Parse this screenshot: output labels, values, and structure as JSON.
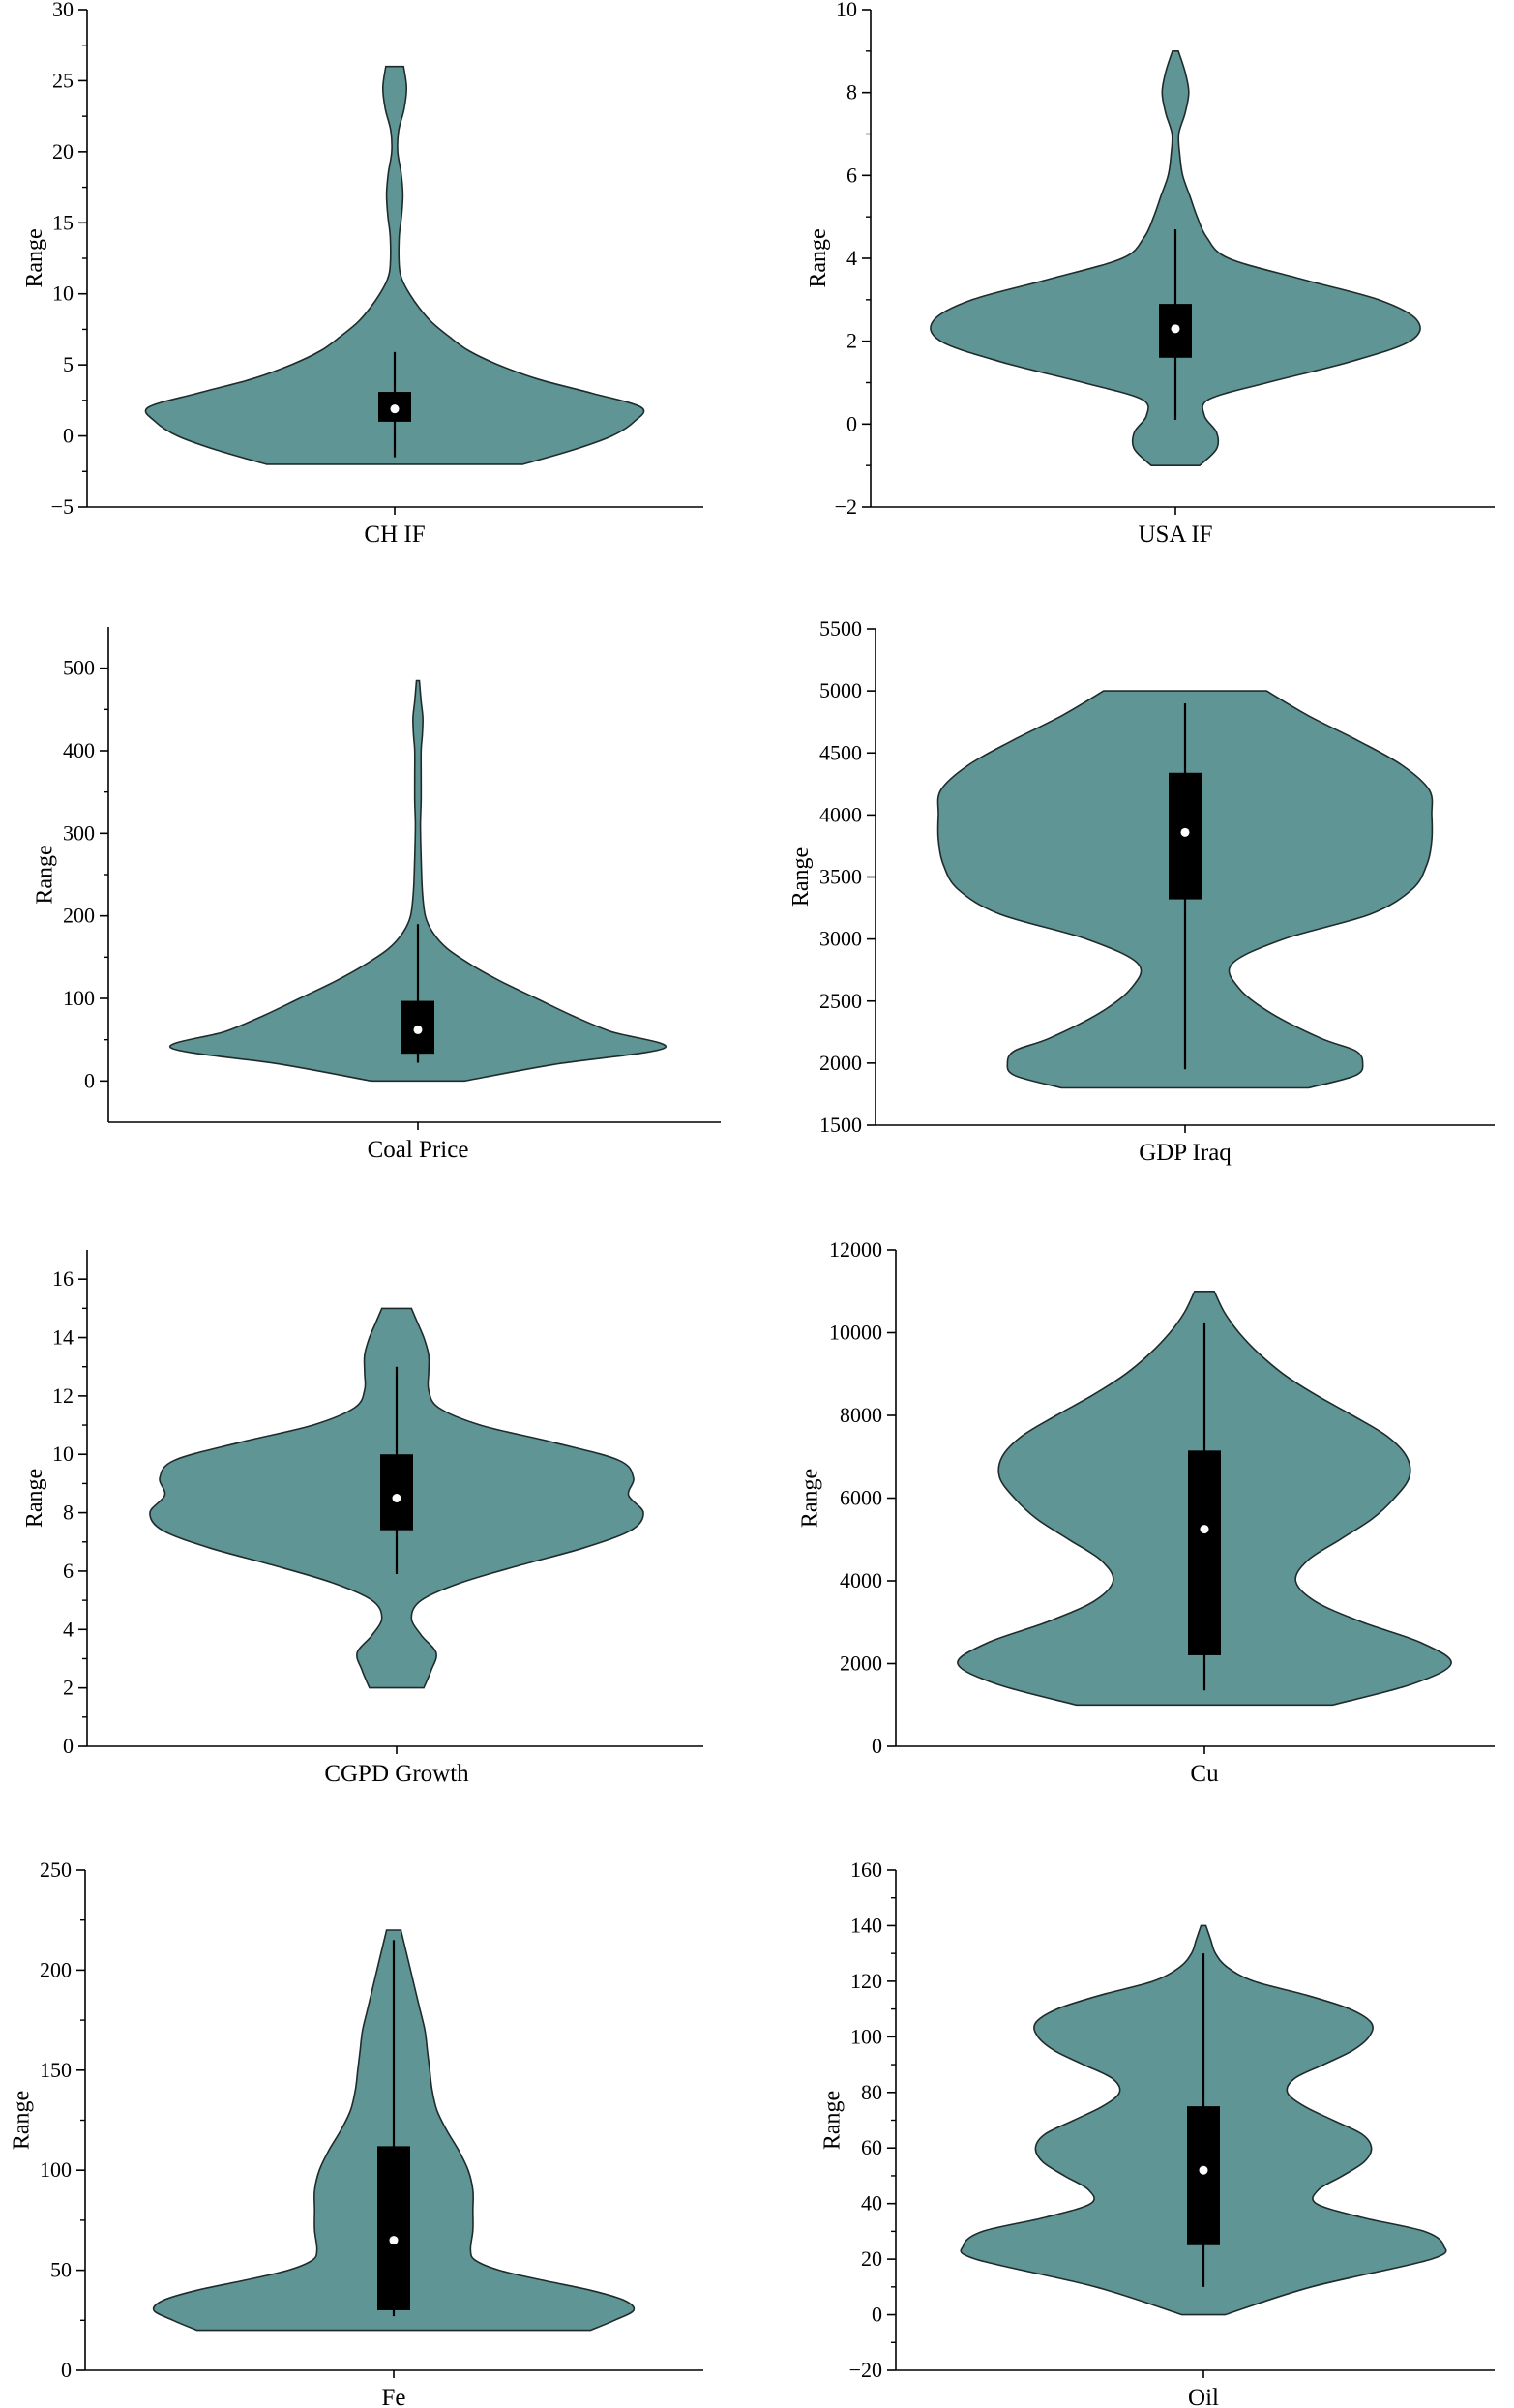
{
  "colors": {
    "violin_fill": "#5f9594",
    "violin_stroke": "#1f2b2b",
    "box": "#000000",
    "median": "#ffffff",
    "axis": "#000000"
  },
  "chart_data": [
    {
      "type": "violin",
      "category": "CH IF",
      "ylabel": "Range",
      "ylim": [
        -5,
        30
      ],
      "yticks": [
        -5,
        0,
        5,
        10,
        15,
        20,
        25,
        30
      ],
      "minor_ticks": true,
      "box": {
        "whisker_low": -1.5,
        "q1": 1.0,
        "median": 1.9,
        "q3": 3.1,
        "whisker_high": 5.9
      },
      "density": [
        [
          -2.0,
          0.52
        ],
        [
          -1.0,
          0.72
        ],
        [
          0.0,
          0.88
        ],
        [
          1.0,
          0.97
        ],
        [
          2.0,
          1.0
        ],
        [
          3.0,
          0.8
        ],
        [
          4.0,
          0.58
        ],
        [
          5.0,
          0.42
        ],
        [
          6.0,
          0.3
        ],
        [
          7.0,
          0.22
        ],
        [
          8.0,
          0.15
        ],
        [
          9.0,
          0.1
        ],
        [
          10.0,
          0.06
        ],
        [
          11.0,
          0.03
        ],
        [
          12.0,
          0.018
        ],
        [
          14.0,
          0.018
        ],
        [
          15.5,
          0.028
        ],
        [
          17.0,
          0.033
        ],
        [
          18.5,
          0.026
        ],
        [
          20.0,
          0.012
        ],
        [
          21.5,
          0.016
        ],
        [
          23.0,
          0.038
        ],
        [
          24.5,
          0.048
        ],
        [
          26.0,
          0.036
        ]
      ]
    },
    {
      "type": "violin",
      "category": "USA IF",
      "ylabel": "Range",
      "ylim": [
        -2,
        10
      ],
      "yticks": [
        -2,
        0,
        2,
        4,
        6,
        8,
        10
      ],
      "minor_ticks": true,
      "box": {
        "whisker_low": 0.1,
        "q1": 1.6,
        "median": 2.3,
        "q3": 2.9,
        "whisker_high": 4.7
      },
      "density": [
        [
          -1.0,
          0.1
        ],
        [
          -0.6,
          0.17
        ],
        [
          -0.2,
          0.17
        ],
        [
          0.2,
          0.12
        ],
        [
          0.6,
          0.14
        ],
        [
          1.0,
          0.38
        ],
        [
          1.5,
          0.72
        ],
        [
          2.0,
          0.97
        ],
        [
          2.5,
          1.0
        ],
        [
          3.0,
          0.84
        ],
        [
          3.5,
          0.52
        ],
        [
          4.0,
          0.22
        ],
        [
          4.5,
          0.13
        ],
        [
          5.0,
          0.09
        ],
        [
          5.5,
          0.06
        ],
        [
          6.0,
          0.03
        ],
        [
          6.5,
          0.018
        ],
        [
          7.0,
          0.014
        ],
        [
          7.5,
          0.04
        ],
        [
          8.0,
          0.055
        ],
        [
          8.5,
          0.04
        ],
        [
          9.0,
          0.012
        ]
      ]
    },
    {
      "type": "violin",
      "category": "Coal Price",
      "ylabel": "Range",
      "ylim": [
        -50,
        550
      ],
      "yticks": [
        0,
        100,
        200,
        300,
        400,
        500
      ],
      "minor_ticks": true,
      "box": {
        "whisker_low": 22,
        "q1": 33,
        "median": 62,
        "q3": 97,
        "whisker_high": 190
      },
      "density": [
        [
          0,
          0.19
        ],
        [
          20,
          0.55
        ],
        [
          40,
          1.0
        ],
        [
          60,
          0.78
        ],
        [
          80,
          0.62
        ],
        [
          100,
          0.48
        ],
        [
          120,
          0.34
        ],
        [
          140,
          0.22
        ],
        [
          160,
          0.12
        ],
        [
          180,
          0.06
        ],
        [
          200,
          0.03
        ],
        [
          230,
          0.018
        ],
        [
          270,
          0.013
        ],
        [
          310,
          0.01
        ],
        [
          340,
          0.013
        ],
        [
          370,
          0.013
        ],
        [
          400,
          0.013
        ],
        [
          420,
          0.018
        ],
        [
          440,
          0.02
        ],
        [
          460,
          0.013
        ],
        [
          485,
          0.006
        ]
      ]
    },
    {
      "type": "violin",
      "category": "GDP Iraq",
      "ylabel": "Range",
      "ylim": [
        1500,
        5500
      ],
      "yticks": [
        1500,
        2000,
        2500,
        3000,
        3500,
        4000,
        4500,
        5000,
        5500
      ],
      "minor_ticks": false,
      "box": {
        "whisker_low": 1950,
        "q1": 3320,
        "median": 3860,
        "q3": 4340,
        "whisker_high": 4900
      },
      "density": [
        [
          1800,
          0.5
        ],
        [
          1900,
          0.69
        ],
        [
          2000,
          0.72
        ],
        [
          2100,
          0.69
        ],
        [
          2200,
          0.55
        ],
        [
          2400,
          0.35
        ],
        [
          2600,
          0.22
        ],
        [
          2800,
          0.19
        ],
        [
          3000,
          0.4
        ],
        [
          3200,
          0.75
        ],
        [
          3400,
          0.92
        ],
        [
          3600,
          0.98
        ],
        [
          3800,
          1.0
        ],
        [
          4000,
          1.0
        ],
        [
          4200,
          0.99
        ],
        [
          4400,
          0.88
        ],
        [
          4600,
          0.7
        ],
        [
          4800,
          0.5
        ],
        [
          5000,
          0.33
        ]
      ]
    },
    {
      "type": "violin",
      "category": "CGPD Growth",
      "ylabel": "Range",
      "ylim": [
        0,
        17
      ],
      "yticks": [
        0,
        2,
        4,
        6,
        8,
        10,
        12,
        14,
        16
      ],
      "minor_ticks": true,
      "box": {
        "whisker_low": 5.9,
        "q1": 7.4,
        "median": 8.5,
        "q3": 10.0,
        "whisker_high": 13.0
      },
      "density": [
        [
          2.0,
          0.11
        ],
        [
          2.6,
          0.14
        ],
        [
          3.2,
          0.16
        ],
        [
          3.8,
          0.1
        ],
        [
          4.4,
          0.06
        ],
        [
          5.0,
          0.1
        ],
        [
          5.6,
          0.26
        ],
        [
          6.2,
          0.5
        ],
        [
          6.8,
          0.76
        ],
        [
          7.4,
          0.95
        ],
        [
          8.0,
          1.0
        ],
        [
          8.6,
          0.94
        ],
        [
          9.2,
          0.96
        ],
        [
          9.8,
          0.9
        ],
        [
          10.4,
          0.64
        ],
        [
          11.0,
          0.34
        ],
        [
          11.6,
          0.17
        ],
        [
          12.2,
          0.13
        ],
        [
          12.8,
          0.13
        ],
        [
          13.4,
          0.13
        ],
        [
          14.0,
          0.11
        ],
        [
          14.6,
          0.08
        ],
        [
          15.0,
          0.06
        ]
      ]
    },
    {
      "type": "violin",
      "category": "Cu",
      "ylabel": "Range",
      "ylim": [
        0,
        12000
      ],
      "yticks": [
        0,
        2000,
        4000,
        6000,
        8000,
        10000,
        12000
      ],
      "minor_ticks": false,
      "box": {
        "whisker_low": 1350,
        "q1": 2200,
        "median": 5250,
        "q3": 7150,
        "whisker_high": 10250
      },
      "density": [
        [
          1000,
          0.52
        ],
        [
          1500,
          0.84
        ],
        [
          2000,
          1.0
        ],
        [
          2500,
          0.88
        ],
        [
          3000,
          0.64
        ],
        [
          3500,
          0.45
        ],
        [
          4000,
          0.37
        ],
        [
          4500,
          0.42
        ],
        [
          5000,
          0.55
        ],
        [
          5500,
          0.68
        ],
        [
          6000,
          0.77
        ],
        [
          6500,
          0.83
        ],
        [
          7000,
          0.82
        ],
        [
          7500,
          0.74
        ],
        [
          8000,
          0.6
        ],
        [
          8500,
          0.45
        ],
        [
          9000,
          0.32
        ],
        [
          9500,
          0.22
        ],
        [
          10000,
          0.14
        ],
        [
          10500,
          0.08
        ],
        [
          11000,
          0.04
        ]
      ]
    },
    {
      "type": "violin",
      "category": "Fe",
      "ylabel": "Range",
      "ylim": [
        0,
        250
      ],
      "yticks": [
        0,
        50,
        100,
        150,
        200,
        250
      ],
      "minor_ticks": true,
      "box": {
        "whisker_low": 27,
        "q1": 30,
        "median": 65,
        "q3": 112,
        "whisker_high": 215
      },
      "density": [
        [
          20,
          0.82
        ],
        [
          25,
          0.92
        ],
        [
          30,
          1.0
        ],
        [
          35,
          0.96
        ],
        [
          40,
          0.82
        ],
        [
          45,
          0.62
        ],
        [
          50,
          0.44
        ],
        [
          55,
          0.34
        ],
        [
          60,
          0.32
        ],
        [
          70,
          0.33
        ],
        [
          80,
          0.33
        ],
        [
          90,
          0.33
        ],
        [
          100,
          0.31
        ],
        [
          110,
          0.27
        ],
        [
          120,
          0.22
        ],
        [
          130,
          0.18
        ],
        [
          140,
          0.16
        ],
        [
          150,
          0.15
        ],
        [
          160,
          0.14
        ],
        [
          170,
          0.13
        ],
        [
          180,
          0.11
        ],
        [
          190,
          0.09
        ],
        [
          200,
          0.07
        ],
        [
          210,
          0.05
        ],
        [
          220,
          0.03
        ]
      ]
    },
    {
      "type": "violin",
      "category": "Oil",
      "ylabel": "Range",
      "ylim": [
        -20,
        160
      ],
      "yticks": [
        -20,
        0,
        20,
        40,
        60,
        80,
        100,
        120,
        140,
        160
      ],
      "minor_ticks": true,
      "box": {
        "whisker_low": 10,
        "q1": 25,
        "median": 52,
        "q3": 75,
        "whisker_high": 130
      },
      "density": [
        [
          0,
          0.09
        ],
        [
          10,
          0.45
        ],
        [
          20,
          0.95
        ],
        [
          25,
          1.0
        ],
        [
          30,
          0.92
        ],
        [
          35,
          0.66
        ],
        [
          40,
          0.47
        ],
        [
          45,
          0.48
        ],
        [
          50,
          0.58
        ],
        [
          55,
          0.67
        ],
        [
          60,
          0.7
        ],
        [
          65,
          0.66
        ],
        [
          70,
          0.54
        ],
        [
          75,
          0.42
        ],
        [
          80,
          0.35
        ],
        [
          85,
          0.38
        ],
        [
          90,
          0.5
        ],
        [
          95,
          0.62
        ],
        [
          100,
          0.69
        ],
        [
          105,
          0.7
        ],
        [
          110,
          0.61
        ],
        [
          115,
          0.43
        ],
        [
          120,
          0.21
        ],
        [
          125,
          0.1
        ],
        [
          130,
          0.05
        ],
        [
          135,
          0.03
        ],
        [
          140,
          0.01
        ]
      ]
    }
  ]
}
